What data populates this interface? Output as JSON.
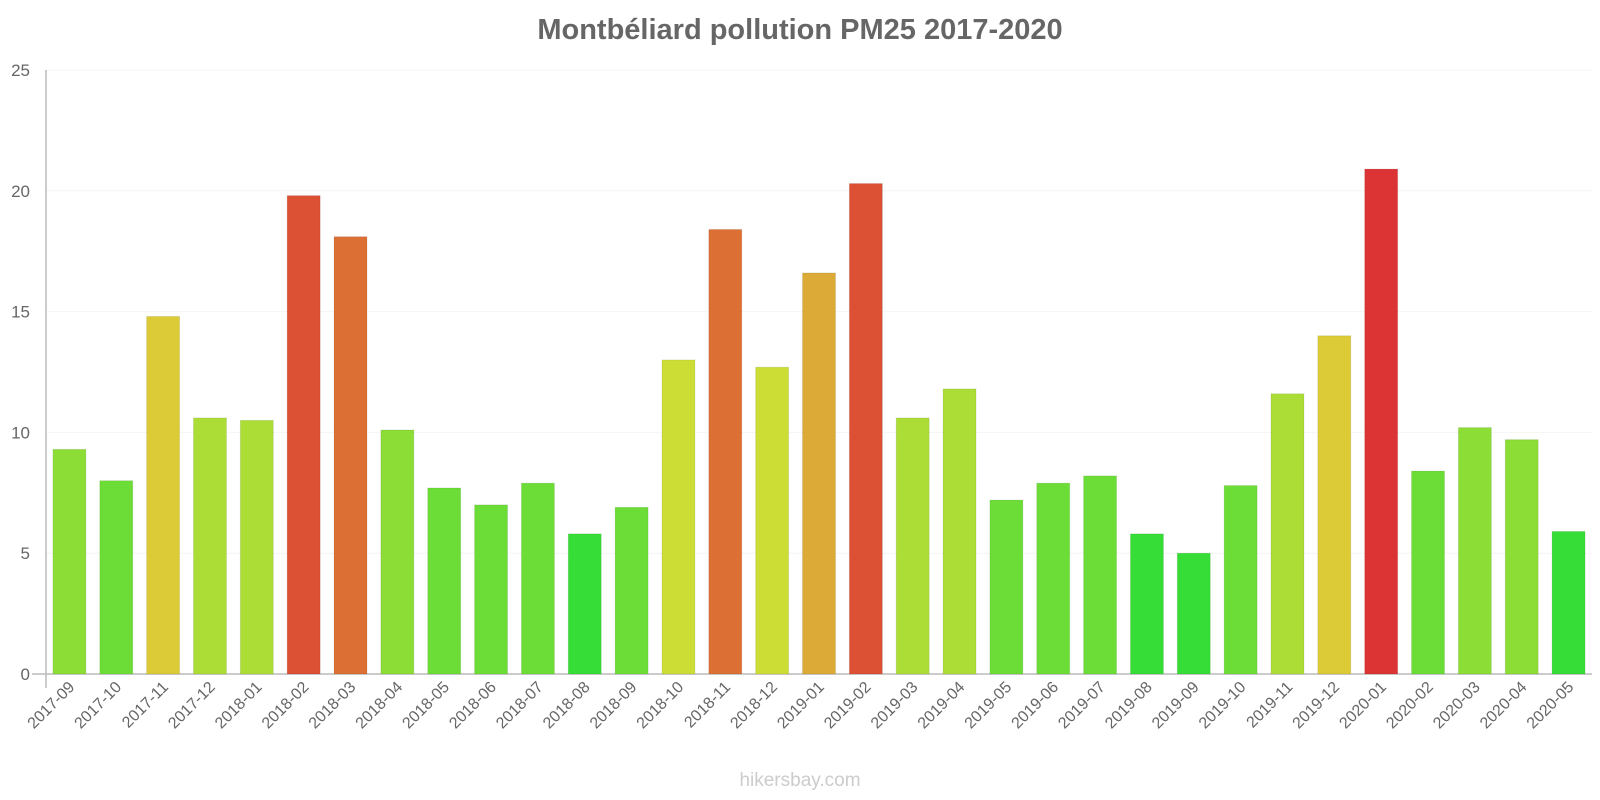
{
  "chart_data": {
    "type": "bar",
    "title": "Montbéliard pollution PM25 2017-2020",
    "xlabel": "",
    "ylabel": "",
    "ylim": [
      0,
      25
    ],
    "yticks": [
      0,
      5,
      10,
      15,
      20,
      25
    ],
    "grid": false,
    "legend": null,
    "categories": [
      "2017-09",
      "2017-10",
      "2017-11",
      "2017-12",
      "2018-01",
      "2018-02",
      "2018-03",
      "2018-04",
      "2018-05",
      "2018-06",
      "2018-07",
      "2018-08",
      "2018-09",
      "2018-10",
      "2018-11",
      "2018-12",
      "2019-01",
      "2019-02",
      "2019-03",
      "2019-04",
      "2019-05",
      "2019-06",
      "2019-07",
      "2019-08",
      "2019-09",
      "2019-10",
      "2019-11",
      "2019-12",
      "2020-01",
      "2020-02",
      "2020-03",
      "2020-04",
      "2020-05"
    ],
    "values": [
      9.3,
      8.0,
      14.8,
      10.6,
      10.5,
      19.8,
      18.1,
      10.1,
      7.7,
      7.0,
      7.9,
      5.8,
      6.9,
      13.0,
      18.4,
      12.7,
      16.6,
      20.3,
      10.6,
      11.8,
      7.2,
      7.9,
      8.2,
      5.8,
      5.0,
      7.8,
      11.6,
      14.0,
      20.9,
      8.4,
      10.2,
      9.7,
      5.9
    ],
    "colors": [
      "#8cdd36",
      "#6cdd36",
      "#dccb36",
      "#acdd36",
      "#acdd36",
      "#dc5034",
      "#dc7034",
      "#8cdd36",
      "#6cdd36",
      "#6cdd36",
      "#6cdd36",
      "#36dd36",
      "#6cdd36",
      "#ccdd36",
      "#dc7034",
      "#ccdd36",
      "#dcaa36",
      "#dc5034",
      "#acdd36",
      "#acdd36",
      "#6cdd36",
      "#6cdd36",
      "#6cdd36",
      "#36dd36",
      "#36dd36",
      "#6cdd36",
      "#acdd36",
      "#dccb36",
      "#dc3434",
      "#6cdd36",
      "#8cdd36",
      "#8cdd36",
      "#36dd36"
    ]
  },
  "footer": {
    "watermark": "hikersbay.com"
  }
}
